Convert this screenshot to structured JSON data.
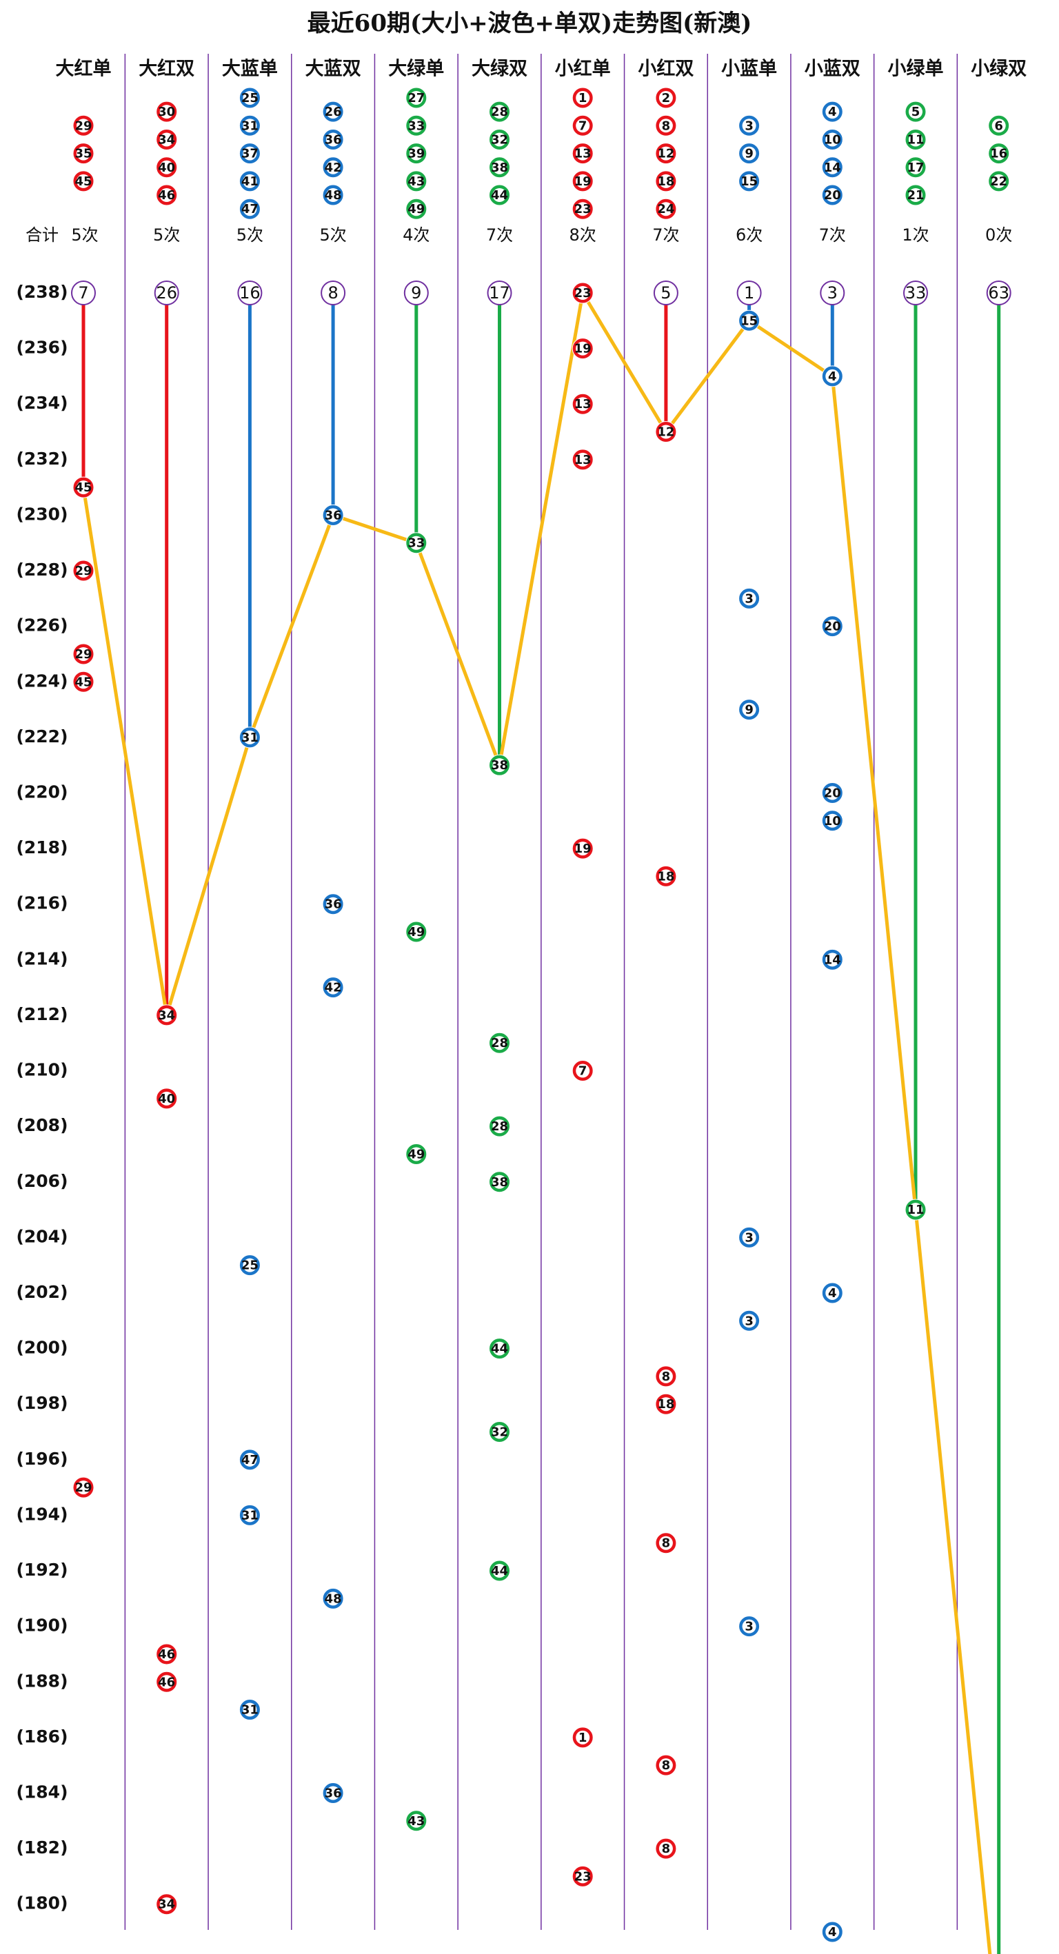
{
  "chart_data": {
    "type": "trend",
    "title": "最近60期(大小+波色+单双)走势图(新澳)",
    "total_label": "合计",
    "columns": [
      {
        "name": "大红单",
        "color": "#e8141b",
        "numbers": [
          29,
          35,
          45
        ],
        "total": "5次"
      },
      {
        "name": "大红双",
        "color": "#e8141b",
        "numbers": [
          30,
          34,
          40,
          46
        ],
        "total": "5次"
      },
      {
        "name": "大蓝单",
        "color": "#1b75c8",
        "numbers": [
          25,
          31,
          37,
          41,
          47
        ],
        "total": "5次"
      },
      {
        "name": "大蓝双",
        "color": "#1b75c8",
        "numbers": [
          26,
          36,
          42,
          48
        ],
        "total": "5次"
      },
      {
        "name": "大绿单",
        "color": "#1aab48",
        "numbers": [
          27,
          33,
          39,
          43,
          49
        ],
        "total": "4次"
      },
      {
        "name": "大绿双",
        "color": "#1aab48",
        "numbers": [
          28,
          32,
          38,
          44
        ],
        "total": "7次"
      },
      {
        "name": "小红单",
        "color": "#e8141b",
        "numbers": [
          1,
          7,
          13,
          19,
          23
        ],
        "total": "8次"
      },
      {
        "name": "小红双",
        "color": "#e8141b",
        "numbers": [
          2,
          8,
          12,
          18,
          24
        ],
        "total": "7次"
      },
      {
        "name": "小蓝单",
        "color": "#1b75c8",
        "numbers": [
          3,
          9,
          15
        ],
        "total": "6次"
      },
      {
        "name": "小蓝双",
        "color": "#1b75c8",
        "numbers": [
          4,
          10,
          14,
          20
        ],
        "total": "7次"
      },
      {
        "name": "小绿单",
        "color": "#1aab48",
        "numbers": [
          5,
          11,
          17,
          21
        ],
        "total": "1次"
      },
      {
        "name": "小绿双",
        "color": "#1aab48",
        "numbers": [
          6,
          16,
          22
        ],
        "total": "0次"
      }
    ],
    "omissions": [
      7,
      26,
      16,
      8,
      9,
      17,
      null,
      5,
      1,
      3,
      33,
      63
    ],
    "line_color": "#f7b916",
    "ylim": [
      238,
      179
    ],
    "yticks": [
      {
        "value": 238,
        "label": "(238)"
      },
      {
        "value": 236,
        "label": "(236)"
      },
      {
        "value": 234,
        "label": "(234)"
      },
      {
        "value": 232,
        "label": "(232)"
      },
      {
        "value": 230,
        "label": "(230)"
      },
      {
        "value": 228,
        "label": "(228)"
      },
      {
        "value": 226,
        "label": "(226)"
      },
      {
        "value": 224,
        "label": "(224)"
      },
      {
        "value": 222,
        "label": "(222)"
      },
      {
        "value": 220,
        "label": "(220)"
      },
      {
        "value": 218,
        "label": "(218)"
      },
      {
        "value": 216,
        "label": "(216)"
      },
      {
        "value": 214,
        "label": "(214)"
      },
      {
        "value": 212,
        "label": "(212)"
      },
      {
        "value": 210,
        "label": "(210)"
      },
      {
        "value": 208,
        "label": "(208)"
      },
      {
        "value": 206,
        "label": "(206)"
      },
      {
        "value": 204,
        "label": "(204)"
      },
      {
        "value": 202,
        "label": "(202)"
      },
      {
        "value": 200,
        "label": "(200)"
      },
      {
        "value": 198,
        "label": "(198)"
      },
      {
        "value": 196,
        "label": "(196)"
      },
      {
        "value": 194,
        "label": "(194)"
      },
      {
        "value": 192,
        "label": "(192)"
      },
      {
        "value": 190,
        "label": "(190)"
      },
      {
        "value": 188,
        "label": "(188)"
      },
      {
        "value": 186,
        "label": "(186)"
      },
      {
        "value": 184,
        "label": "(184)"
      },
      {
        "value": 182,
        "label": "(182)"
      },
      {
        "value": 180,
        "label": "(180)"
      }
    ],
    "balls": [
      {
        "period": 238,
        "column": 6,
        "number": 23
      },
      {
        "period": 237,
        "column": 8,
        "number": 15
      },
      {
        "period": 236,
        "column": 6,
        "number": 19
      },
      {
        "period": 235,
        "column": 9,
        "number": 4
      },
      {
        "period": 234,
        "column": 6,
        "number": 13
      },
      {
        "period": 233,
        "column": 7,
        "number": 12
      },
      {
        "period": 232,
        "column": 6,
        "number": 13
      },
      {
        "period": 231,
        "column": 0,
        "number": 45
      },
      {
        "period": 230,
        "column": 3,
        "number": 36
      },
      {
        "period": 229,
        "column": 4,
        "number": 33
      },
      {
        "period": 228,
        "column": 0,
        "number": 29
      },
      {
        "period": 227,
        "column": 8,
        "number": 3
      },
      {
        "period": 226,
        "column": 9,
        "number": 20
      },
      {
        "period": 225,
        "column": 0,
        "number": 29
      },
      {
        "period": 224,
        "column": 0,
        "number": 45
      },
      {
        "period": 223,
        "column": 8,
        "number": 9
      },
      {
        "period": 222,
        "column": 2,
        "number": 31
      },
      {
        "period": 221,
        "column": 5,
        "number": 38
      },
      {
        "period": 220,
        "column": 9,
        "number": 20
      },
      {
        "period": 219,
        "column": 9,
        "number": 10
      },
      {
        "period": 218,
        "column": 6,
        "number": 19
      },
      {
        "period": 217,
        "column": 7,
        "number": 18
      },
      {
        "period": 216,
        "column": 3,
        "number": 36
      },
      {
        "period": 215,
        "column": 4,
        "number": 49
      },
      {
        "period": 214,
        "column": 9,
        "number": 14
      },
      {
        "period": 213,
        "column": 3,
        "number": 42
      },
      {
        "period": 212,
        "column": 1,
        "number": 34
      },
      {
        "period": 211,
        "column": 5,
        "number": 28
      },
      {
        "period": 210,
        "column": 6,
        "number": 7
      },
      {
        "period": 209,
        "column": 1,
        "number": 40
      },
      {
        "period": 208,
        "column": 5,
        "number": 28
      },
      {
        "period": 207,
        "column": 4,
        "number": 49
      },
      {
        "period": 206,
        "column": 5,
        "number": 38
      },
      {
        "period": 205,
        "column": 10,
        "number": 11
      },
      {
        "period": 204,
        "column": 8,
        "number": 3
      },
      {
        "period": 203,
        "column": 2,
        "number": 25
      },
      {
        "period": 202,
        "column": 9,
        "number": 4
      },
      {
        "period": 201,
        "column": 8,
        "number": 3
      },
      {
        "period": 200,
        "column": 5,
        "number": 44
      },
      {
        "period": 199,
        "column": 7,
        "number": 8
      },
      {
        "period": 198,
        "column": 7,
        "number": 18
      },
      {
        "period": 197,
        "column": 5,
        "number": 32
      },
      {
        "period": 196,
        "column": 2,
        "number": 47
      },
      {
        "period": 195,
        "column": 0,
        "number": 29
      },
      {
        "period": 194,
        "column": 2,
        "number": 31
      },
      {
        "period": 193,
        "column": 7,
        "number": 8
      },
      {
        "period": 192,
        "column": 5,
        "number": 44
      },
      {
        "period": 191,
        "column": 3,
        "number": 48
      },
      {
        "period": 190,
        "column": 8,
        "number": 3
      },
      {
        "period": 189,
        "column": 1,
        "number": 46
      },
      {
        "period": 188,
        "column": 1,
        "number": 46
      },
      {
        "period": 187,
        "column": 2,
        "number": 31
      },
      {
        "period": 186,
        "column": 6,
        "number": 1
      },
      {
        "period": 185,
        "column": 7,
        "number": 8
      },
      {
        "period": 184,
        "column": 3,
        "number": 36
      },
      {
        "period": 183,
        "column": 4,
        "number": 43
      },
      {
        "period": 182,
        "column": 7,
        "number": 8
      },
      {
        "period": 181,
        "column": 6,
        "number": 23
      },
      {
        "period": 180,
        "column": 1,
        "number": 34
      },
      {
        "period": 179,
        "column": 9,
        "number": 4
      }
    ]
  }
}
